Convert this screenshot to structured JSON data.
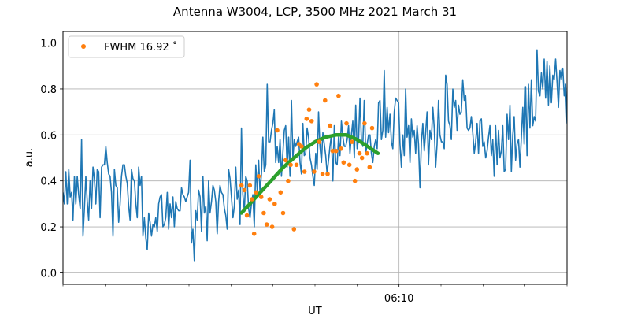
{
  "chart_data": {
    "type": "line",
    "title": "Antenna W3004, LCP, 3500 MHz 2021 March 31",
    "xlabel": "UT",
    "ylabel": "a.u.",
    "xlim_minutes_after_0600": [
      2,
      14
    ],
    "ylim": [
      -0.05,
      1.05
    ],
    "yticks": [
      0.0,
      0.2,
      0.4,
      0.6,
      0.8,
      1.0
    ],
    "ytick_labels": [
      "0.0",
      "0.2",
      "0.4",
      "0.6",
      "0.8",
      "1.0"
    ],
    "xticks_major": [
      {
        "minute": 10,
        "label": "06:10"
      }
    ],
    "xticks_minor_minutes": [
      2,
      3,
      4,
      5,
      6,
      7,
      8,
      9,
      11,
      12,
      13,
      14
    ],
    "grid": true,
    "legend": {
      "position": "top-left",
      "entries": [
        {
          "label": "FWHM 16.92$^\\circ$",
          "text": "FWHM 16.92 ˚",
          "series": "fwhm_points"
        }
      ]
    },
    "colors": {
      "signal": "#1f77b4",
      "fwhm_points": "#ff7f0e",
      "fit": "#2ca02c",
      "grid": "#b0b0b0"
    },
    "series": [
      {
        "name": "signal",
        "style": "line",
        "x_start_minute": 2.0,
        "x_end_minute": 14.0,
        "values": [
          0.35,
          0.3,
          0.44,
          0.3,
          0.45,
          0.33,
          0.35,
          0.23,
          0.42,
          0.3,
          0.42,
          0.34,
          0.28,
          0.58,
          0.16,
          0.28,
          0.42,
          0.31,
          0.23,
          0.4,
          0.28,
          0.46,
          0.41,
          0.3,
          0.45,
          0.44,
          0.24,
          0.46,
          0.47,
          0.47,
          0.55,
          0.48,
          0.43,
          0.42,
          0.35,
          0.16,
          0.45,
          0.38,
          0.37,
          0.22,
          0.3,
          0.42,
          0.47,
          0.47,
          0.42,
          0.39,
          0.29,
          0.23,
          0.45,
          0.41,
          0.4,
          0.3,
          0.24,
          0.46,
          0.38,
          0.42,
          0.16,
          0.24,
          0.15,
          0.1,
          0.26,
          0.22,
          0.16,
          0.21,
          0.2,
          0.24,
          0.18,
          0.3,
          0.33,
          0.34,
          0.2,
          0.21,
          0.24,
          0.35,
          0.19,
          0.3,
          0.24,
          0.33,
          0.2,
          0.31,
          0.28,
          0.27,
          0.27,
          0.37,
          0.34,
          0.33,
          0.31,
          0.33,
          0.35,
          0.49,
          0.13,
          0.19,
          0.05,
          0.27,
          0.23,
          0.36,
          0.33,
          0.18,
          0.42,
          0.26,
          0.29,
          0.14,
          0.4,
          0.26,
          0.31,
          0.38,
          0.36,
          0.31,
          0.17,
          0.31,
          0.38,
          0.35,
          0.34,
          0.28,
          0.25,
          0.19,
          0.45,
          0.41,
          0.33,
          0.24,
          0.29,
          0.46,
          0.32,
          0.36,
          0.21,
          0.63,
          0.34,
          0.27,
          0.42,
          0.4,
          0.28,
          0.24,
          0.3,
          0.34,
          0.2,
          0.47,
          0.36,
          0.49,
          0.35,
          0.43,
          0.59,
          0.44,
          0.47,
          0.82,
          0.57,
          0.57,
          0.62,
          0.65,
          0.71,
          0.48,
          0.55,
          0.48,
          0.58,
          0.42,
          0.52,
          0.62,
          0.64,
          0.46,
          0.59,
          0.42,
          0.75,
          0.5,
          0.58,
          0.55,
          0.57,
          0.59,
          0.48,
          0.43,
          0.65,
          0.51,
          0.52,
          0.63,
          0.59,
          0.5,
          0.47,
          0.42,
          0.38,
          0.52,
          0.45,
          0.7,
          0.55,
          0.48,
          0.61,
          0.56,
          0.51,
          0.43,
          0.49,
          0.55,
          0.6,
          0.4,
          0.64,
          0.48,
          0.47,
          0.59,
          0.51,
          0.66,
          0.59,
          0.55,
          0.55,
          0.58,
          0.64,
          0.52,
          0.6,
          0.66,
          0.5,
          0.73,
          0.54,
          0.58,
          0.76,
          0.58,
          0.55,
          0.75,
          0.52,
          0.56,
          0.6,
          0.6,
          0.52,
          0.48,
          0.55,
          0.58,
          0.54,
          0.74,
          0.75,
          0.58,
          0.62,
          0.88,
          0.59,
          0.72,
          0.61,
          0.69,
          0.57,
          0.54,
          0.7,
          0.76,
          0.75,
          0.74,
          0.56,
          0.46,
          0.6,
          0.51,
          0.8,
          0.59,
          0.64,
          0.48,
          0.67,
          0.59,
          0.62,
          0.52,
          0.64,
          0.56,
          0.37,
          0.57,
          0.65,
          0.53,
          0.61,
          0.7,
          0.47,
          0.62,
          0.58,
          0.72,
          0.63,
          0.46,
          0.56,
          0.75,
          0.6,
          0.57,
          0.57,
          0.54,
          0.86,
          0.82,
          0.66,
          0.64,
          0.58,
          0.8,
          0.72,
          0.75,
          0.62,
          0.73,
          0.69,
          0.7,
          0.84,
          0.75,
          0.77,
          0.63,
          0.62,
          0.63,
          0.68,
          0.61,
          0.52,
          0.57,
          0.65,
          0.52,
          0.66,
          0.67,
          0.55,
          0.57,
          0.5,
          0.53,
          0.59,
          0.64,
          0.51,
          0.58,
          0.42,
          0.64,
          0.47,
          0.62,
          0.5,
          0.53,
          0.64,
          0.44,
          0.45,
          0.69,
          0.58,
          0.73,
          0.44,
          0.6,
          0.68,
          0.49,
          0.56,
          0.58,
          0.46,
          0.59,
          0.72,
          0.56,
          0.81,
          0.51,
          0.82,
          0.63,
          0.84,
          0.64,
          0.68,
          0.66,
          0.97,
          0.79,
          0.77,
          0.87,
          0.8,
          0.93,
          0.76,
          0.92,
          0.73,
          0.9,
          0.74,
          0.86,
          0.84,
          0.93,
          0.83,
          0.72,
          0.88,
          0.84,
          0.89,
          0.77,
          0.82,
          0.65
        ]
      },
      {
        "name": "fwhm_points",
        "style": "scatter",
        "x_minutes": [
          6.25,
          6.32,
          6.38,
          6.45,
          6.5,
          6.55,
          6.6,
          6.66,
          6.72,
          6.78,
          6.85,
          6.92,
          6.98,
          7.04,
          7.1,
          7.18,
          7.24,
          7.3,
          7.36,
          7.42,
          7.5,
          7.56,
          7.62,
          7.68,
          7.75,
          7.8,
          7.86,
          7.92,
          7.98,
          8.04,
          8.1,
          8.18,
          8.24,
          8.3,
          8.36,
          8.42,
          8.5,
          8.56,
          8.62,
          8.68,
          8.75,
          8.82,
          8.88,
          8.95,
          9.0,
          9.06,
          9.12,
          9.18,
          9.24,
          9.3,
          9.36
        ],
        "values": [
          0.38,
          0.36,
          0.25,
          0.38,
          0.32,
          0.17,
          0.35,
          0.42,
          0.33,
          0.26,
          0.21,
          0.32,
          0.2,
          0.3,
          0.62,
          0.35,
          0.26,
          0.49,
          0.4,
          0.47,
          0.19,
          0.47,
          0.56,
          0.55,
          0.44,
          0.67,
          0.71,
          0.66,
          0.44,
          0.82,
          0.57,
          0.43,
          0.75,
          0.43,
          0.64,
          0.53,
          0.53,
          0.77,
          0.54,
          0.48,
          0.65,
          0.47,
          0.57,
          0.4,
          0.45,
          0.52,
          0.5,
          0.65,
          0.52,
          0.46,
          0.63
        ]
      },
      {
        "name": "fit",
        "style": "curve",
        "x_minutes": [
          6.25,
          6.5,
          6.75,
          7.0,
          7.25,
          7.5,
          7.75,
          8.0,
          8.25,
          8.5,
          8.75,
          9.0,
          9.25,
          9.5
        ],
        "values": [
          0.26,
          0.31,
          0.36,
          0.41,
          0.46,
          0.5,
          0.54,
          0.57,
          0.59,
          0.6,
          0.6,
          0.58,
          0.55,
          0.52
        ]
      }
    ]
  }
}
